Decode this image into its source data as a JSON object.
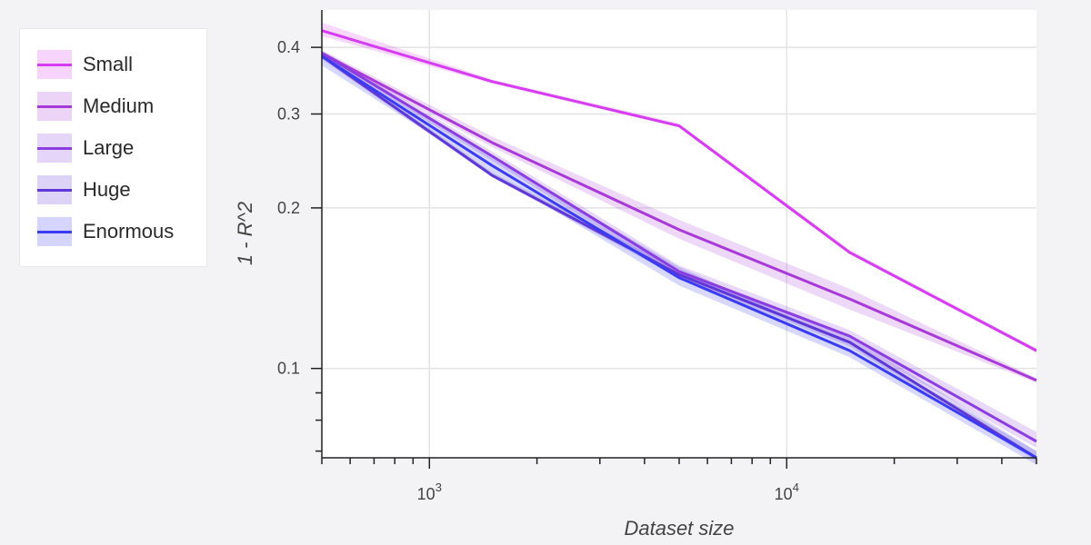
{
  "chart_data": {
    "type": "line",
    "xlabel": "Dataset size",
    "ylabel": "1 - R^2",
    "xscale": "log",
    "yscale": "log",
    "xlim": [
      500,
      50000
    ],
    "ylim": [
      0.068,
      0.47
    ],
    "x_tick_labels": [
      {
        "value": 1000,
        "base": "10",
        "exp": "3"
      },
      {
        "value": 10000,
        "base": "10",
        "exp": "4"
      }
    ],
    "y_tick_labels": [
      {
        "value": 0.4,
        "label": "0.4"
      },
      {
        "value": 0.3,
        "label": "0.3"
      },
      {
        "value": 0.2,
        "label": "0.2"
      },
      {
        "value": 0.1,
        "label": "0.1"
      }
    ],
    "grid": true,
    "legend_position": "outside-left",
    "series": [
      {
        "name": "Small",
        "color": "#d63cf0",
        "x": [
          500,
          1500,
          5000,
          15000,
          50000
        ],
        "y": [
          0.43,
          0.345,
          0.285,
          0.165,
          0.108
        ],
        "lower": [
          0.42,
          0.342,
          0.283,
          0.164,
          0.107
        ],
        "upper": [
          0.445,
          0.348,
          0.288,
          0.167,
          0.109
        ]
      },
      {
        "name": "Medium",
        "color": "#a83ad8",
        "x": [
          500,
          1500,
          5000,
          15000,
          50000
        ],
        "y": [
          0.39,
          0.265,
          0.182,
          0.135,
          0.095
        ],
        "lower": [
          0.385,
          0.26,
          0.175,
          0.129,
          0.094
        ],
        "upper": [
          0.395,
          0.272,
          0.19,
          0.141,
          0.096
        ]
      },
      {
        "name": "Large",
        "color": "#8a3ee0",
        "x": [
          500,
          1500,
          5000,
          15000,
          50000
        ],
        "y": [
          0.39,
          0.25,
          0.152,
          0.115,
          0.073
        ],
        "lower": [
          0.385,
          0.245,
          0.148,
          0.112,
          0.071
        ],
        "upper": [
          0.395,
          0.255,
          0.156,
          0.118,
          0.076
        ]
      },
      {
        "name": "Huge",
        "color": "#5e38d6",
        "x": [
          500,
          1500,
          5000,
          15000,
          50000
        ],
        "y": [
          0.385,
          0.23,
          0.15,
          0.112,
          0.068
        ],
        "lower": [
          0.38,
          0.228,
          0.148,
          0.11,
          0.067
        ],
        "upper": [
          0.39,
          0.233,
          0.153,
          0.115,
          0.07
        ]
      },
      {
        "name": "Enormous",
        "color": "#3b3cf2",
        "x": [
          500,
          1500,
          5000,
          15000,
          50000
        ],
        "y": [
          0.385,
          0.24,
          0.148,
          0.108,
          0.068
        ],
        "lower": [
          0.37,
          0.232,
          0.143,
          0.105,
          0.066
        ],
        "upper": [
          0.39,
          0.248,
          0.155,
          0.111,
          0.07
        ]
      }
    ]
  }
}
